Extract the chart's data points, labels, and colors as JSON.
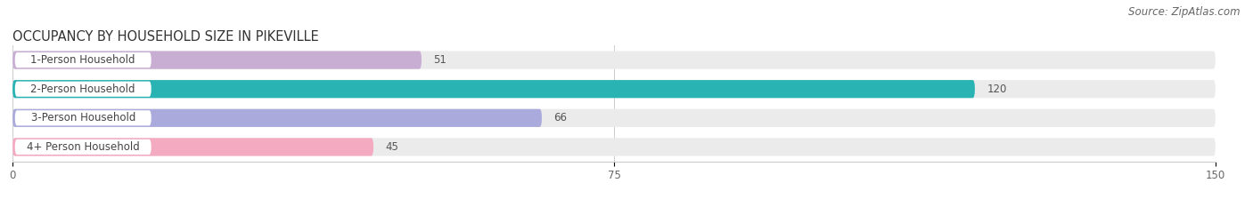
{
  "title": "OCCUPANCY BY HOUSEHOLD SIZE IN PIKEVILLE",
  "source": "Source: ZipAtlas.com",
  "categories": [
    "1-Person Household",
    "2-Person Household",
    "3-Person Household",
    "4+ Person Household"
  ],
  "values": [
    51,
    120,
    66,
    45
  ],
  "bar_colors": [
    "#c9aed4",
    "#2ab3b3",
    "#aaaadc",
    "#f4aac0"
  ],
  "bar_bg_color": "#ebebeb",
  "xlim": [
    0,
    150
  ],
  "xticks": [
    0,
    75,
    150
  ],
  "title_fontsize": 10.5,
  "source_fontsize": 8.5,
  "label_fontsize": 8.5,
  "value_fontsize": 8.5,
  "figsize": [
    14.06,
    2.33
  ],
  "dpi": 100,
  "bg_color": "#ffffff"
}
